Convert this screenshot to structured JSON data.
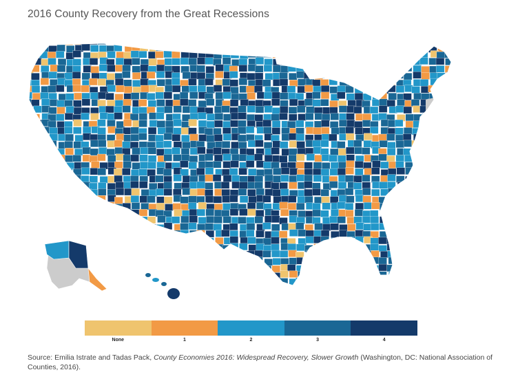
{
  "title": "2016 County Recovery from the Great Recessions",
  "legend": {
    "items": [
      {
        "label": "None",
        "color": "#efc46e"
      },
      {
        "label": "1",
        "color": "#f29a45"
      },
      {
        "label": "2",
        "color": "#2297c9"
      },
      {
        "label": "3",
        "color": "#1a6795"
      },
      {
        "label": "4",
        "color": "#143a6a"
      }
    ]
  },
  "map": {
    "no_data_color": "#cccccc",
    "border_color": "#ffffff"
  },
  "source": {
    "prefix": "Source: Emilia Istrate and Tadas Pack, ",
    "title_italic": "County Economies 2016: Widespread Recovery, Slower Growth",
    "suffix": " (Washington, DC: National Association of Counties, 2016)."
  }
}
